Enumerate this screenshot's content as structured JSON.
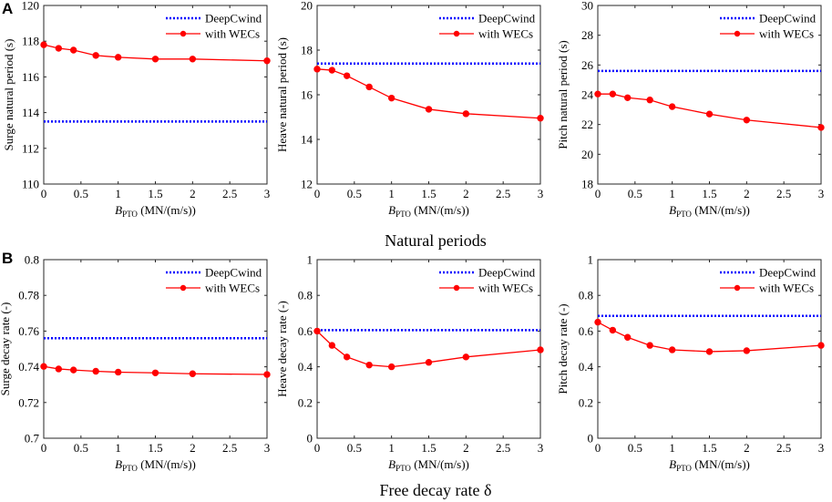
{
  "panels": [
    {
      "letter": "A",
      "title": "Natural periods"
    },
    {
      "letter": "B",
      "title": "Free decay rate δ"
    }
  ],
  "legend": {
    "series1": "DeepCwind",
    "series2": "with WECs"
  },
  "colors": {
    "deepcwind": "#0000ff",
    "with_wecs": "#ff0000",
    "axis": "#262626"
  },
  "chart_data": [
    {
      "type": "line",
      "row": 0,
      "col": 0,
      "xlabel": "B_PTO (MN/(m/s))",
      "ylabel": "Surge natural period (s)",
      "xlim": [
        0,
        3
      ],
      "ylim": [
        110,
        120
      ],
      "xticks": [
        0,
        0.5,
        1,
        1.5,
        2,
        2.5,
        3
      ],
      "xticklabels": [
        "0",
        "0.5",
        "1",
        "1.5",
        "2",
        "2.5",
        "3"
      ],
      "yticks": [
        110,
        112,
        114,
        116,
        118,
        120
      ],
      "yticklabels": [
        "110",
        "112",
        "114",
        "116",
        "118",
        "120"
      ],
      "series": [
        {
          "name": "DeepCwind",
          "style": "dotted",
          "x": [
            0,
            3
          ],
          "y": [
            113.5,
            113.5
          ]
        },
        {
          "name": "with WECs",
          "style": "line-marker",
          "x": [
            0,
            0.2,
            0.4,
            0.7,
            1,
            1.5,
            2,
            3
          ],
          "y": [
            117.8,
            117.6,
            117.5,
            117.2,
            117.1,
            117.0,
            117.0,
            116.9
          ]
        }
      ]
    },
    {
      "type": "line",
      "row": 0,
      "col": 1,
      "xlabel": "B_PTO (MN/(m/s))",
      "ylabel": "Heave natural period (s)",
      "xlim": [
        0,
        3
      ],
      "ylim": [
        12,
        20
      ],
      "xticks": [
        0,
        0.5,
        1,
        1.5,
        2,
        2.5,
        3
      ],
      "xticklabels": [
        "0",
        "0.5",
        "1",
        "1.5",
        "2",
        "2.5",
        "3"
      ],
      "yticks": [
        12,
        14,
        16,
        18,
        20
      ],
      "yticklabels": [
        "12",
        "14",
        "16",
        "18",
        "20"
      ],
      "series": [
        {
          "name": "DeepCwind",
          "style": "dotted",
          "x": [
            0,
            3
          ],
          "y": [
            17.4,
            17.4
          ]
        },
        {
          "name": "with WECs",
          "style": "line-marker",
          "x": [
            0,
            0.2,
            0.4,
            0.7,
            1,
            1.5,
            2,
            3
          ],
          "y": [
            17.15,
            17.1,
            16.85,
            16.35,
            15.85,
            15.35,
            15.15,
            14.95
          ]
        }
      ]
    },
    {
      "type": "line",
      "row": 0,
      "col": 2,
      "xlabel": "B_PTO (MN/(m/s))",
      "ylabel": "Pitch natural period (s)",
      "xlim": [
        0,
        3
      ],
      "ylim": [
        18,
        30
      ],
      "xticks": [
        0,
        0.5,
        1,
        1.5,
        2,
        2.5,
        3
      ],
      "xticklabels": [
        "0",
        "0.5",
        "1",
        "1.5",
        "2",
        "2.5",
        "3"
      ],
      "yticks": [
        18,
        20,
        22,
        24,
        26,
        28,
        30
      ],
      "yticklabels": [
        "18",
        "20",
        "22",
        "24",
        "26",
        "28",
        "30"
      ],
      "series": [
        {
          "name": "DeepCwind",
          "style": "dotted",
          "x": [
            0,
            3
          ],
          "y": [
            25.6,
            25.6
          ]
        },
        {
          "name": "with WECs",
          "style": "line-marker",
          "x": [
            0,
            0.2,
            0.4,
            0.7,
            1,
            1.5,
            2,
            3
          ],
          "y": [
            24.05,
            24.05,
            23.8,
            23.65,
            23.2,
            22.7,
            22.3,
            21.8
          ]
        }
      ]
    },
    {
      "type": "line",
      "row": 1,
      "col": 0,
      "xlabel": "B_PTO (MN/(m/s))",
      "ylabel": "Surge decay rate (-)",
      "xlim": [
        0,
        3
      ],
      "ylim": [
        0.7,
        0.8
      ],
      "xticks": [
        0,
        0.5,
        1,
        1.5,
        2,
        2.5,
        3
      ],
      "xticklabels": [
        "0",
        "0.5",
        "1",
        "1.5",
        "2",
        "2.5",
        "3"
      ],
      "yticks": [
        0.7,
        0.72,
        0.74,
        0.76,
        0.78,
        0.8
      ],
      "yticklabels": [
        "0.7",
        "0.72",
        "0.74",
        "0.76",
        "0.78",
        "0.8"
      ],
      "series": [
        {
          "name": "DeepCwind",
          "style": "dotted",
          "x": [
            0,
            3
          ],
          "y": [
            0.756,
            0.756
          ]
        },
        {
          "name": "with WECs",
          "style": "line-marker",
          "x": [
            0,
            0.2,
            0.4,
            0.7,
            1,
            1.5,
            2,
            3
          ],
          "y": [
            0.7402,
            0.7388,
            0.7382,
            0.7375,
            0.737,
            0.7366,
            0.7361,
            0.7357
          ]
        }
      ]
    },
    {
      "type": "line",
      "row": 1,
      "col": 1,
      "xlabel": "B_PTO (MN/(m/s))",
      "ylabel": "Heave decay rate (-)",
      "xlim": [
        0,
        3
      ],
      "ylim": [
        0,
        1
      ],
      "xticks": [
        0,
        0.5,
        1,
        1.5,
        2,
        2.5,
        3
      ],
      "xticklabels": [
        "0",
        "0.5",
        "1",
        "1.5",
        "2",
        "2.5",
        "3"
      ],
      "yticks": [
        0,
        0.2,
        0.4,
        0.6,
        0.8,
        1
      ],
      "yticklabels": [
        "0",
        "0.2",
        "0.4",
        "0.6",
        "0.8",
        "1"
      ],
      "series": [
        {
          "name": "DeepCwind",
          "style": "dotted",
          "x": [
            0,
            3
          ],
          "y": [
            0.605,
            0.605
          ]
        },
        {
          "name": "with WECs",
          "style": "line-marker",
          "x": [
            0,
            0.2,
            0.4,
            0.7,
            1,
            1.5,
            2,
            3
          ],
          "y": [
            0.6,
            0.52,
            0.455,
            0.41,
            0.4,
            0.425,
            0.455,
            0.495
          ]
        }
      ]
    },
    {
      "type": "line",
      "row": 1,
      "col": 2,
      "xlabel": "B_PTO (MN/(m/s))",
      "ylabel": "Pitch decay rate (-)",
      "xlim": [
        0,
        3
      ],
      "ylim": [
        0,
        1
      ],
      "xticks": [
        0,
        0.5,
        1,
        1.5,
        2,
        2.5,
        3
      ],
      "xticklabels": [
        "0",
        "0.5",
        "1",
        "1.5",
        "2",
        "2.5",
        "3"
      ],
      "yticks": [
        0,
        0.2,
        0.4,
        0.6,
        0.8,
        1
      ],
      "yticklabels": [
        "0",
        "0.2",
        "0.4",
        "0.6",
        "0.8",
        "1"
      ],
      "series": [
        {
          "name": "DeepCwind",
          "style": "dotted",
          "x": [
            0,
            3
          ],
          "y": [
            0.685,
            0.685
          ]
        },
        {
          "name": "with WECs",
          "style": "line-marker",
          "x": [
            0,
            0.2,
            0.4,
            0.7,
            1,
            1.5,
            2,
            3
          ],
          "y": [
            0.65,
            0.605,
            0.565,
            0.52,
            0.495,
            0.485,
            0.49,
            0.52
          ]
        }
      ]
    }
  ]
}
